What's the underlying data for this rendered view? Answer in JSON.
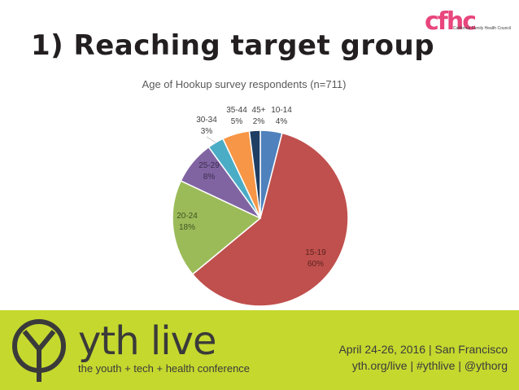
{
  "slide": {
    "title": "1) Reaching target group",
    "logo_text": "California Family Health Council",
    "logo_mark": "cfhc"
  },
  "footer": {
    "brand": "yth live",
    "tagline": "the youth + tech + health conference",
    "date_location": "April 24-26, 2016 | San Francisco",
    "links": "yth.org/live | #ythlive | @ythorg",
    "background_color": "#c5d82e",
    "icon": "yth-circle-y-icon"
  },
  "chart_data": {
    "type": "pie",
    "title": "Age of Hookup survey respondents (n=711)",
    "slices": [
      {
        "label": "10-14",
        "percent_label": "4%",
        "value": 4,
        "color": "#4f81bd"
      },
      {
        "label": "15-19",
        "percent_label": "60%",
        "value": 60,
        "color": "#c0504d"
      },
      {
        "label": "20-24",
        "percent_label": "18%",
        "value": 18,
        "color": "#9bbb59"
      },
      {
        "label": "25-29",
        "percent_label": "8%",
        "value": 8,
        "color": "#8064a2"
      },
      {
        "label": "30-34",
        "percent_label": "3%",
        "value": 3,
        "color": "#4bacc6"
      },
      {
        "label": "35-44",
        "percent_label": "5%",
        "value": 5,
        "color": "#f79646"
      },
      {
        "label": "45+",
        "percent_label": "2%",
        "value": 2,
        "color": "#1f3e63"
      }
    ],
    "start": "12 o'clock",
    "direction": "clockwise",
    "legend": "none"
  }
}
